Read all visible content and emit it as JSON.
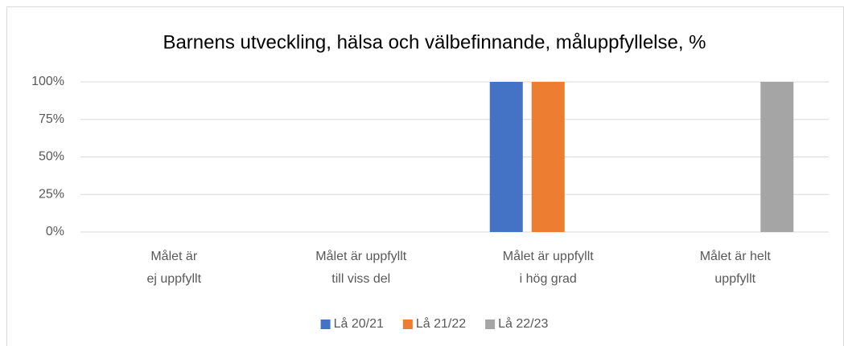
{
  "chart_data": {
    "type": "bar",
    "title": "Barnens utveckling, hälsa och välbefinnande, måluppfyllelse, %",
    "categories": [
      "Målet är\nej uppfyllt",
      "Målet är uppfyllt\ntill viss del",
      "Målet är uppfyllt\ni hög grad",
      "Målet är helt\nuppfyllt"
    ],
    "series": [
      {
        "name": "Lå 20/21",
        "color": "#4472c4",
        "values": [
          0,
          0,
          100,
          0
        ]
      },
      {
        "name": "Lå 21/22",
        "color": "#ed7d31",
        "values": [
          0,
          0,
          100,
          0
        ]
      },
      {
        "name": "Lå 22/23",
        "color": "#a5a5a5",
        "values": [
          0,
          0,
          0,
          100
        ]
      }
    ],
    "ylim": [
      0,
      100
    ],
    "yticks": [
      {
        "value": 0,
        "label": "0%"
      },
      {
        "value": 25,
        "label": "25%"
      },
      {
        "value": 50,
        "label": "50%"
      },
      {
        "value": 75,
        "label": "75%"
      },
      {
        "value": 100,
        "label": "100%"
      }
    ],
    "grid": true,
    "legend": "bottom"
  }
}
